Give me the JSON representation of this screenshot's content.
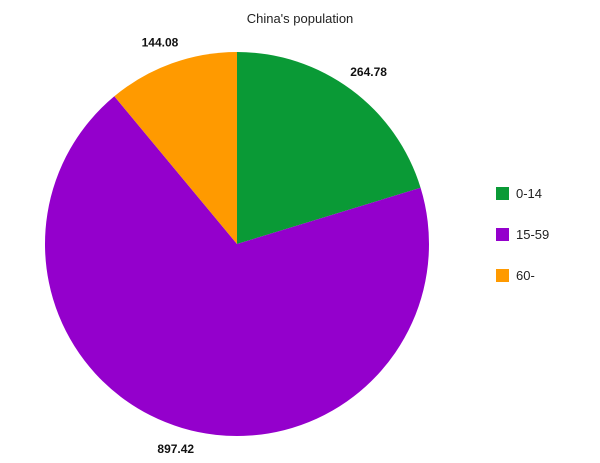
{
  "chart_data": {
    "type": "pie",
    "title": "China's population",
    "categories": [
      "0-14",
      "15-59",
      "60-"
    ],
    "values": [
      264.78,
      897.42,
      144.08
    ],
    "value_labels": [
      "264.78",
      "897.42",
      "144.08"
    ],
    "colors": [
      "#0a9a36",
      "#9400cc",
      "#ff9a00"
    ],
    "legend_position": "right",
    "start": "top",
    "direction": "clockwise"
  }
}
